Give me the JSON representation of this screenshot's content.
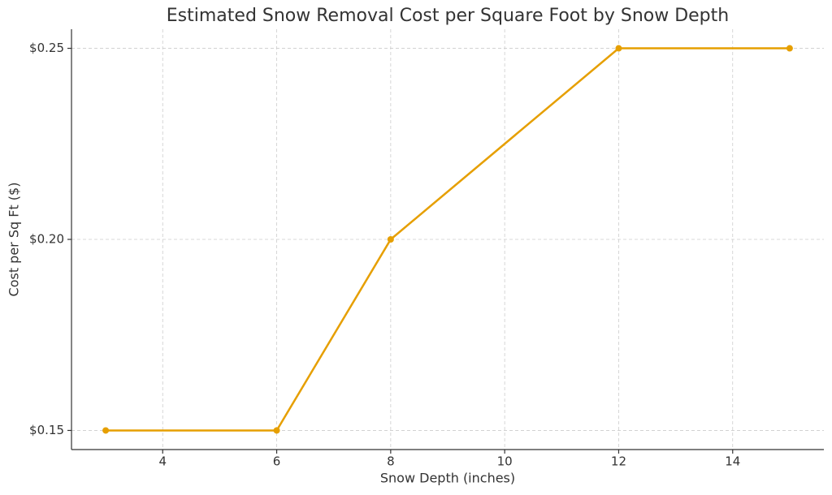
{
  "chart_data": {
    "type": "line",
    "title": "Estimated Snow Removal Cost per Square Foot by Snow Depth",
    "x_label": "Snow Depth (inches)",
    "y_label": "Cost per Sq Ft ($)",
    "x": [
      3,
      6,
      8,
      12,
      15
    ],
    "series": [
      {
        "name": "Cost per Sq Ft",
        "color": "#e69f00",
        "values": [
          0.15,
          0.15,
          0.2,
          0.25,
          0.25
        ]
      }
    ],
    "xlim": [
      2.4,
      15.6
    ],
    "ylim": [
      0.145,
      0.255
    ],
    "xticks": [
      4,
      6,
      8,
      10,
      12,
      14
    ],
    "yticks": [
      {
        "value": 0.15,
        "label": "$0.15"
      },
      {
        "value": 0.2,
        "label": "$0.20"
      },
      {
        "value": 0.25,
        "label": "$0.25"
      }
    ],
    "grid": true
  }
}
